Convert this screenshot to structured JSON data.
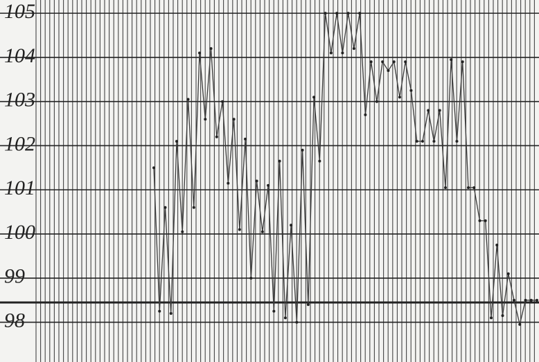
{
  "chart_data": {
    "type": "line",
    "color": "#3a3a3a",
    "ylim": [
      97.1,
      105.3
    ],
    "yticks": [
      98,
      99,
      100,
      101,
      102,
      103,
      104,
      105
    ],
    "grid": true,
    "categories": [
      null,
      null,
      null,
      null,
      null,
      null,
      null,
      null,
      null,
      null,
      null,
      null,
      null,
      null,
      null,
      null,
      null,
      null,
      null,
      null,
      null,
      null,
      null,
      null,
      null,
      null,
      null,
      null,
      null,
      null,
      null,
      null,
      null,
      null,
      null,
      null,
      null,
      null,
      null,
      null,
      null,
      null,
      null,
      null,
      null,
      null,
      null,
      null,
      null,
      null,
      null,
      null,
      null,
      null,
      null,
      null,
      null,
      null,
      null,
      null,
      null,
      null,
      null,
      null,
      null,
      null,
      null,
      null
    ],
    "values": [
      101.5,
      98.25,
      100.6,
      98.2,
      102.1,
      100.05,
      103.05,
      100.6,
      104.1,
      102.6,
      104.2,
      102.2,
      103.0,
      101.15,
      102.6,
      100.1,
      102.15,
      99.0,
      101.2,
      100.05,
      101.1,
      98.25,
      101.65,
      98.1,
      100.2,
      98.0,
      101.9,
      98.4,
      103.1,
      101.65,
      105.0,
      104.1,
      105.0,
      104.1,
      105.0,
      104.2,
      105.0,
      102.7,
      103.9,
      103.0,
      103.9,
      103.7,
      103.9,
      103.1,
      103.9,
      103.25,
      102.1,
      102.1,
      102.8,
      102.1,
      102.8,
      101.05,
      103.95,
      102.1,
      103.9,
      101.05,
      101.05,
      100.3,
      100.3,
      98.1,
      99.75,
      98.15,
      99.1,
      98.5,
      97.95,
      98.5,
      98.5,
      98.5
    ]
  }
}
